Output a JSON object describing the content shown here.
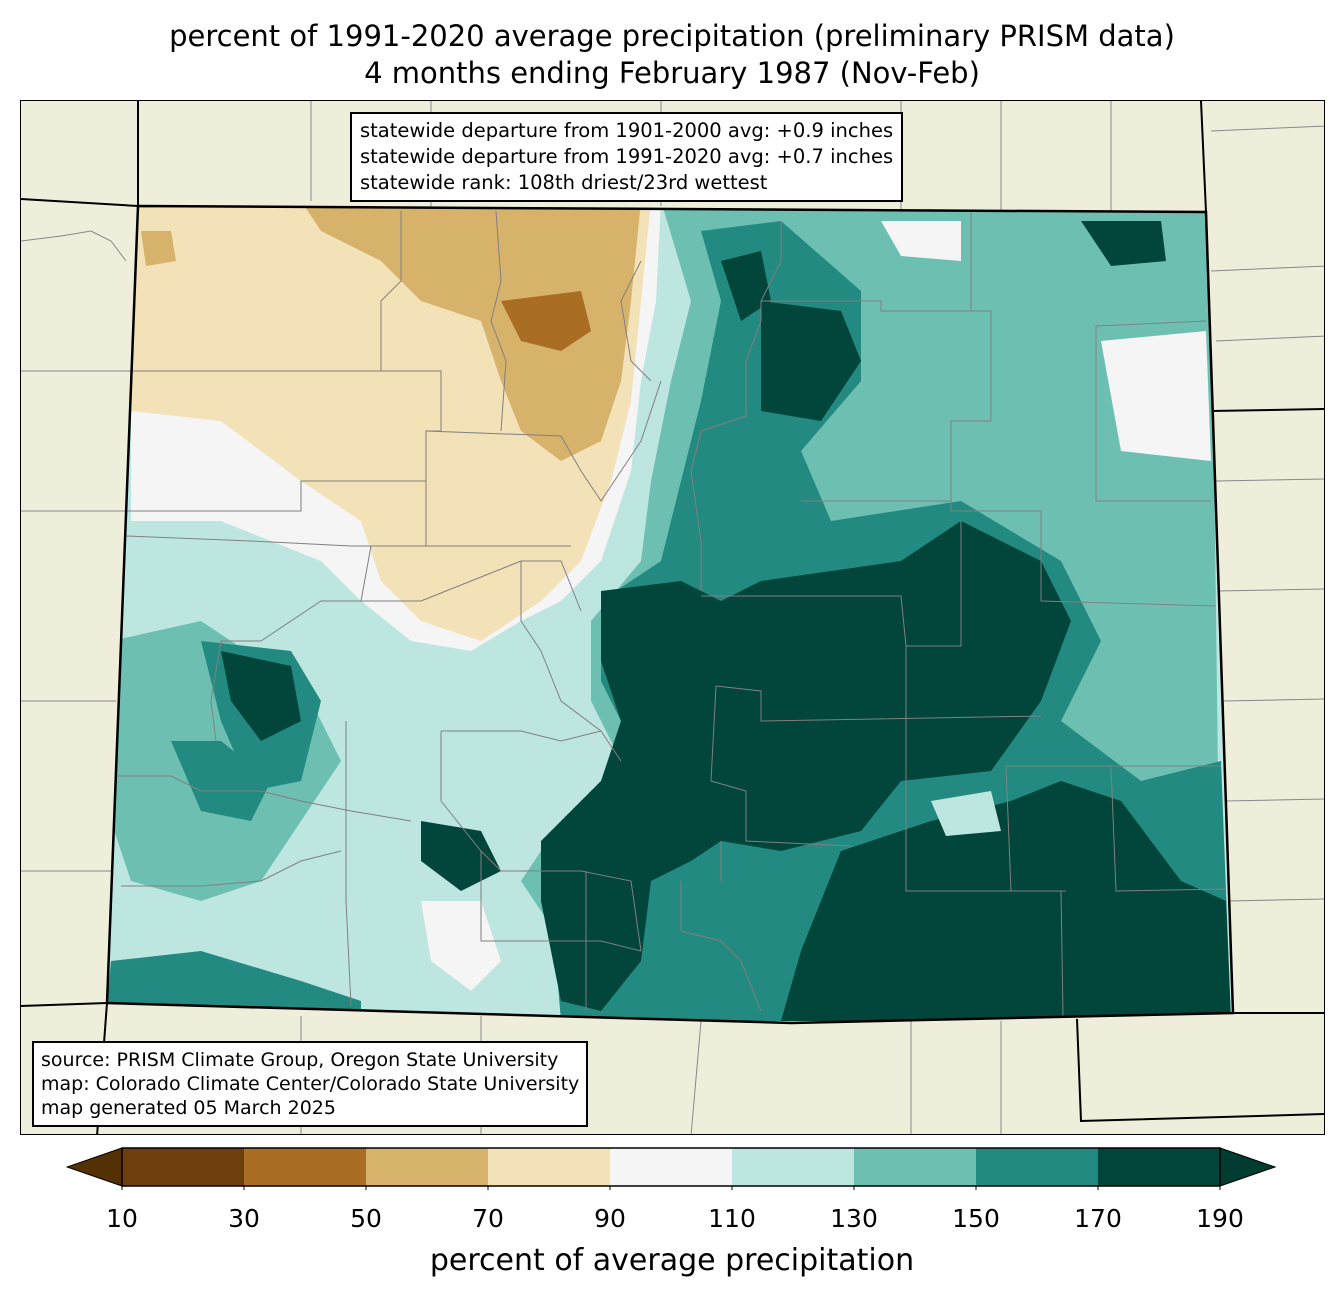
{
  "title": {
    "line1": "percent of 1991-2020 average precipitation (preliminary PRISM data)",
    "line2": "4 months ending February 1987 (Nov-Feb)"
  },
  "stats": {
    "line1": "statewide departure from 1901-2000 avg: +0.9 inches",
    "line2": "statewide departure from 1991-2020 avg: +0.7 inches",
    "line3": "statewide rank: 108th driest/23rd wettest"
  },
  "credits": {
    "line1": "source: PRISM Climate Group, Oregon State University",
    "line2": "map: Colorado Climate Center/Colorado State University",
    "line3": "map generated 05 March 2025"
  },
  "colorbar": {
    "label": "percent of average precipitation",
    "ticks": [
      "10",
      "30",
      "50",
      "70",
      "90",
      "110",
      "130",
      "150",
      "170",
      "190"
    ],
    "under_color": "#543005",
    "over_color": "#003c30",
    "bin_colors": [
      "#6d3f0c",
      "#a96d24",
      "#d7b26b",
      "#f3e1b7",
      "#f4f5f4",
      "#bde6e0",
      "#6dbfb2",
      "#228a80",
      "#01453b"
    ]
  },
  "map_colors": {
    "background": "#efeedb",
    "border": "#000000",
    "county": "#808080"
  }
}
